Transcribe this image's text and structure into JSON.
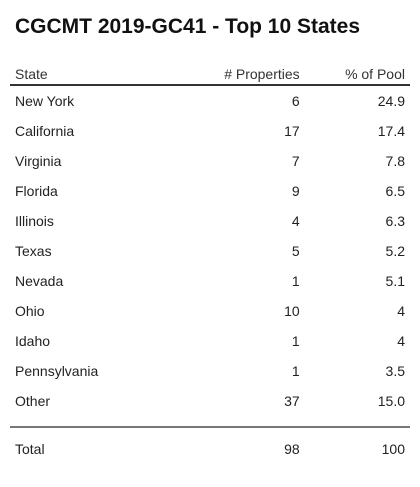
{
  "title": "CGCMT 2019-GC41 - Top 10 States",
  "table": {
    "headers": {
      "state": "State",
      "properties": "# Properties",
      "pool": "% of Pool"
    },
    "rows": [
      {
        "state": "New York",
        "properties": "6",
        "pool": "24.9"
      },
      {
        "state": "California",
        "properties": "17",
        "pool": "17.4"
      },
      {
        "state": "Virginia",
        "properties": "7",
        "pool": "7.8"
      },
      {
        "state": "Florida",
        "properties": "9",
        "pool": "6.5"
      },
      {
        "state": "Illinois",
        "properties": "4",
        "pool": "6.3"
      },
      {
        "state": "Texas",
        "properties": "5",
        "pool": "5.2"
      },
      {
        "state": "Nevada",
        "properties": "1",
        "pool": "5.1"
      },
      {
        "state": "Ohio",
        "properties": "10",
        "pool": "4"
      },
      {
        "state": "Idaho",
        "properties": "1",
        "pool": "4"
      },
      {
        "state": "Pennsylvania",
        "properties": "1",
        "pool": "3.5"
      },
      {
        "state": "Other",
        "properties": "37",
        "pool": "15.0"
      }
    ],
    "total": {
      "state": "Total",
      "properties": "98",
      "pool": "100"
    }
  }
}
